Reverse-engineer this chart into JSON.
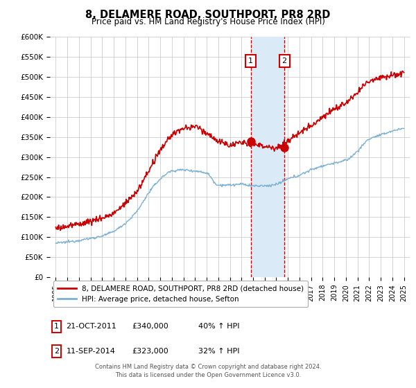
{
  "title": "8, DELAMERE ROAD, SOUTHPORT, PR8 2RD",
  "subtitle": "Price paid vs. HM Land Registry's House Price Index (HPI)",
  "ylim": [
    0,
    600000
  ],
  "yticks": [
    0,
    50000,
    100000,
    150000,
    200000,
    250000,
    300000,
    350000,
    400000,
    450000,
    500000,
    550000,
    600000
  ],
  "ytick_labels": [
    "£0",
    "£50K",
    "£100K",
    "£150K",
    "£200K",
    "£250K",
    "£300K",
    "£350K",
    "£400K",
    "£450K",
    "£500K",
    "£550K",
    "£600K"
  ],
  "sale1_date": "21-OCT-2011",
  "sale1_price": 340000,
  "sale1_pct": "40%",
  "sale1_year": 2011.8,
  "sale2_date": "11-SEP-2014",
  "sale2_price": 323000,
  "sale2_pct": "32%",
  "sale2_year": 2014.7,
  "legend_line1": "8, DELAMERE ROAD, SOUTHPORT, PR8 2RD (detached house)",
  "legend_line2": "HPI: Average price, detached house, Sefton",
  "footnote": "Contains HM Land Registry data © Crown copyright and database right 2024.\nThis data is licensed under the Open Government Licence v3.0.",
  "red_line_color": "#cc0000",
  "blue_line_color": "#7aafd4",
  "shade_color": "#daeaf7",
  "grid_color": "#cccccc",
  "background_color": "#ffffff",
  "box_color": "#cc0000"
}
